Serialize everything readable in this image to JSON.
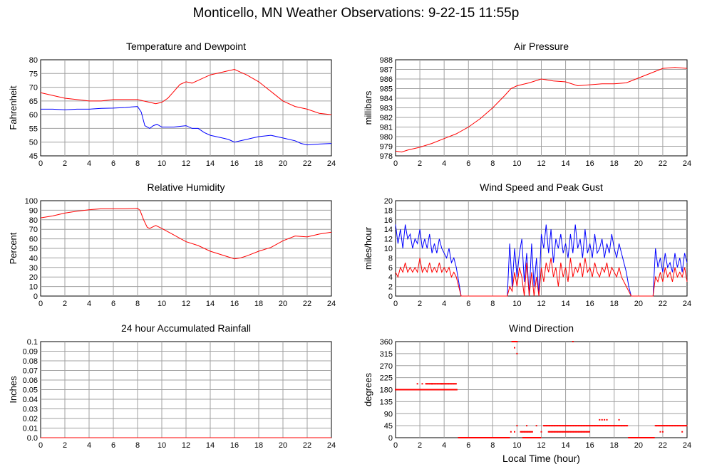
{
  "page": {
    "title": "Monticello, MN Weather Observations: 9-22-15 11:55p"
  },
  "chart_data": [
    {
      "id": "temp",
      "type": "line",
      "title": "Temperature and Dewpoint",
      "xlabel": "",
      "ylabel": "Fahrenheit",
      "xlim": [
        0,
        24
      ],
      "ylim": [
        45,
        80
      ],
      "xticks": [
        0,
        2,
        4,
        6,
        8,
        10,
        12,
        14,
        16,
        18,
        20,
        22,
        24
      ],
      "yticks": [
        45,
        50,
        55,
        60,
        65,
        70,
        75,
        80
      ],
      "grid": true,
      "series": [
        {
          "color": "#ff0000",
          "x": [
            0,
            1,
            2,
            3,
            4,
            5,
            6,
            7,
            8,
            8.5,
            9,
            9.5,
            10,
            10.5,
            11,
            11.5,
            12,
            12.5,
            13,
            14,
            15,
            15.5,
            16,
            16.5,
            17,
            18,
            19,
            20,
            21,
            22,
            23,
            24
          ],
          "y": [
            68,
            67,
            66,
            65.5,
            65,
            65,
            65.5,
            65.5,
            65.5,
            65,
            64.5,
            64,
            64.5,
            66,
            68.5,
            71,
            72,
            71.5,
            72.5,
            74.5,
            75.5,
            76,
            76.5,
            75.5,
            74.5,
            72,
            68.5,
            65,
            63,
            62,
            60.5,
            60
          ]
        },
        {
          "color": "#0000ff",
          "x": [
            0,
            1,
            2,
            3,
            4,
            5,
            6,
            7,
            7.5,
            8,
            8.3,
            8.6,
            9,
            9.3,
            9.6,
            10,
            11,
            12,
            12.5,
            13,
            13.5,
            14,
            14.5,
            15,
            15.5,
            16,
            16.5,
            17,
            17.5,
            18,
            19,
            20,
            21,
            21.5,
            22,
            23,
            24
          ],
          "y": [
            62,
            62,
            61.8,
            62,
            62,
            62.3,
            62.4,
            62.6,
            62.8,
            63,
            61,
            56,
            55,
            56,
            56.5,
            55.5,
            55.5,
            56,
            55,
            55,
            53.5,
            52.5,
            52,
            51.5,
            51,
            50,
            50.5,
            51,
            51.5,
            52,
            52.5,
            51.5,
            50.5,
            49.5,
            49,
            49.3,
            49.5
          ]
        }
      ]
    },
    {
      "id": "pressure",
      "type": "line",
      "title": "Air Pressure",
      "xlabel": "",
      "ylabel": "millibars",
      "xlim": [
        0,
        24
      ],
      "ylim": [
        978,
        988
      ],
      "xticks": [
        0,
        2,
        4,
        6,
        8,
        10,
        12,
        14,
        16,
        18,
        20,
        22,
        24
      ],
      "yticks": [
        978,
        979,
        980,
        981,
        982,
        983,
        984,
        985,
        986,
        987,
        988
      ],
      "grid": true,
      "series": [
        {
          "color": "#ff0000",
          "x": [
            0,
            0.5,
            1,
            2,
            3,
            4,
            5,
            6,
            7,
            8,
            9,
            9.5,
            10,
            11,
            12,
            12.5,
            13,
            14,
            15,
            16,
            17,
            18,
            19,
            20,
            21,
            22,
            23,
            24
          ],
          "y": [
            978.5,
            978.4,
            978.6,
            978.9,
            979.3,
            979.8,
            980.3,
            981,
            981.9,
            983,
            984.3,
            985,
            985.3,
            985.6,
            986,
            985.9,
            985.8,
            985.7,
            985.3,
            985.4,
            985.5,
            985.5,
            985.6,
            986.1,
            986.6,
            987.1,
            987.2,
            987.1
          ]
        }
      ]
    },
    {
      "id": "humidity",
      "type": "line",
      "title": "Relative Humidity",
      "xlabel": "",
      "ylabel": "Percent",
      "xlim": [
        0,
        24
      ],
      "ylim": [
        0,
        100
      ],
      "xticks": [
        0,
        2,
        4,
        6,
        8,
        10,
        12,
        14,
        16,
        18,
        20,
        22,
        24
      ],
      "yticks": [
        0,
        10,
        20,
        30,
        40,
        50,
        60,
        70,
        80,
        90,
        100
      ],
      "grid": true,
      "series": [
        {
          "color": "#ff0000",
          "x": [
            0,
            1,
            2,
            3,
            4,
            5,
            6,
            7,
            8,
            8.2,
            8.5,
            8.8,
            9,
            9.5,
            10,
            11,
            12,
            13,
            14,
            15,
            16,
            16.5,
            17,
            18,
            19,
            20,
            21,
            22,
            23,
            24
          ],
          "y": [
            82,
            84,
            87,
            89,
            90.5,
            91.5,
            91.5,
            91.5,
            92,
            90,
            80,
            72,
            71,
            74,
            71,
            64,
            57,
            53,
            47,
            43,
            39,
            40,
            42,
            47,
            51,
            58,
            63,
            62,
            65,
            67
          ]
        }
      ]
    },
    {
      "id": "wind",
      "type": "line",
      "title": "Wind Speed and Peak Gust",
      "xlabel": "",
      "ylabel": "miles/hour",
      "xlim": [
        0,
        24
      ],
      "ylim": [
        0,
        20
      ],
      "xticks": [
        0,
        2,
        4,
        6,
        8,
        10,
        12,
        14,
        16,
        18,
        20,
        22,
        24
      ],
      "yticks": [
        0,
        2,
        4,
        6,
        8,
        10,
        12,
        14,
        16,
        18,
        20
      ],
      "grid": true,
      "series": [
        {
          "color": "#0000ff",
          "x": [
            0,
            0.2,
            0.4,
            0.6,
            0.8,
            1,
            1.2,
            1.4,
            1.6,
            1.8,
            2,
            2.2,
            2.4,
            2.6,
            2.8,
            3,
            3.2,
            3.4,
            3.6,
            3.8,
            4,
            4.2,
            4.4,
            4.6,
            4.8,
            5,
            5.2,
            5.4,
            9.2,
            9.4,
            9.6,
            9.8,
            10,
            10.2,
            10.4,
            10.6,
            10.8,
            11,
            11.2,
            11.4,
            11.6,
            11.8,
            12,
            12.2,
            12.4,
            12.6,
            12.8,
            13,
            13.2,
            13.4,
            13.6,
            13.8,
            14,
            14.2,
            14.4,
            14.6,
            14.8,
            15,
            15.2,
            15.4,
            15.6,
            15.8,
            16,
            16.2,
            16.4,
            16.6,
            16.8,
            17,
            17.2,
            17.4,
            17.6,
            17.8,
            18,
            18.2,
            18.4,
            18.6,
            18.8,
            19,
            19.2,
            19.4,
            21.2,
            21.4,
            21.6,
            21.8,
            22,
            22.2,
            22.4,
            22.6,
            22.8,
            23,
            23.2,
            23.4,
            23.6,
            23.8,
            24
          ],
          "y": [
            15,
            11,
            14,
            10,
            15,
            12,
            13,
            10,
            12,
            11,
            14,
            10,
            12,
            10,
            13,
            9,
            11,
            9,
            12,
            10,
            9,
            8,
            10,
            7,
            8,
            6,
            3,
            0,
            0,
            11,
            2,
            10,
            4,
            9,
            12,
            3,
            9,
            0,
            11,
            2,
            8,
            0,
            13,
            10,
            15,
            9,
            14,
            7,
            12,
            10,
            13,
            9,
            11,
            8,
            13,
            9,
            15,
            10,
            12,
            8,
            14,
            9,
            11,
            8,
            13,
            9,
            10,
            12,
            8,
            11,
            9,
            13,
            10,
            8,
            11,
            9,
            7,
            5,
            2,
            0,
            0,
            10,
            6,
            8,
            5,
            9,
            6,
            7,
            5,
            9,
            6,
            8,
            5,
            9,
            7
          ],
          "extend_zero": [
            5.4,
            9.2,
            19.4,
            21.2
          ]
        },
        {
          "color": "#ff0000",
          "x": [
            0,
            0.2,
            0.4,
            0.6,
            0.8,
            1,
            1.2,
            1.4,
            1.6,
            1.8,
            2,
            2.2,
            2.4,
            2.6,
            2.8,
            3,
            3.2,
            3.4,
            3.6,
            3.8,
            4,
            4.2,
            4.4,
            4.6,
            4.8,
            5,
            5.2,
            5.4,
            9.2,
            9.4,
            9.6,
            9.8,
            10,
            10.2,
            10.4,
            10.6,
            10.8,
            11,
            11.2,
            11.4,
            11.6,
            11.8,
            12,
            12.2,
            12.4,
            12.6,
            12.8,
            13,
            13.2,
            13.4,
            13.6,
            13.8,
            14,
            14.2,
            14.4,
            14.6,
            14.8,
            15,
            15.2,
            15.4,
            15.6,
            15.8,
            16,
            16.2,
            16.4,
            16.6,
            16.8,
            17,
            17.2,
            17.4,
            17.6,
            17.8,
            18,
            18.2,
            18.4,
            18.6,
            18.8,
            19,
            19.2,
            19.4,
            21.2,
            21.4,
            21.6,
            21.8,
            22,
            22.2,
            22.4,
            22.6,
            22.8,
            23,
            23.2,
            23.4,
            23.6,
            23.8,
            24
          ],
          "y": [
            5,
            4,
            6,
            5,
            7,
            5,
            6,
            5,
            6,
            5,
            8,
            5,
            6,
            5,
            7,
            5,
            6,
            5,
            7,
            5,
            6,
            5,
            6,
            4,
            5,
            4,
            2,
            0,
            0,
            2,
            1,
            5,
            2,
            6,
            4,
            0,
            7,
            0,
            5,
            0,
            4,
            0,
            6,
            3,
            7,
            5,
            8,
            4,
            6,
            2,
            7,
            4,
            6,
            3,
            8,
            4,
            6,
            5,
            7,
            4,
            8,
            5,
            6,
            4,
            7,
            5,
            4,
            6,
            5,
            7,
            4,
            6,
            5,
            4,
            6,
            4,
            3,
            2,
            1,
            0,
            0,
            4,
            3,
            5,
            3,
            6,
            4,
            5,
            3,
            6,
            4,
            5,
            4,
            6,
            3
          ]
        }
      ]
    },
    {
      "id": "rain",
      "type": "line",
      "title": "24 hour Accumulated Rainfall",
      "xlabel": "",
      "ylabel": "Inches",
      "xlim": [
        0,
        24
      ],
      "ylim": [
        0,
        0.1
      ],
      "xticks": [
        0,
        2,
        4,
        6,
        8,
        10,
        12,
        14,
        16,
        18,
        20,
        22,
        24
      ],
      "yticks": [
        "0.0",
        "0.01",
        "0.02",
        "0.03",
        "0.04",
        "0.05",
        "0.06",
        "0.07",
        "0.08",
        "0.09",
        "0.1"
      ],
      "grid": true,
      "series": [
        {
          "color": "#ff0000",
          "x": [
            0,
            24
          ],
          "y": [
            0,
            0
          ]
        }
      ]
    },
    {
      "id": "direction",
      "type": "scatter",
      "title": "Wind Direction",
      "xlabel": "Local Time (hour)",
      "ylabel": "degrees",
      "xlim": [
        0,
        24
      ],
      "ylim": [
        0,
        360
      ],
      "xticks": [
        0,
        2,
        4,
        6,
        8,
        10,
        12,
        14,
        16,
        18,
        20,
        22,
        24
      ],
      "yticks": [
        0,
        45,
        90,
        135,
        180,
        225,
        270,
        315,
        360
      ],
      "grid": true,
      "series": [
        {
          "color": "#ff0000",
          "segments": [
            {
              "x0": 0,
              "x1": 5.1,
              "y": 180
            },
            {
              "x0": 2.5,
              "x1": 5.0,
              "y": 202
            },
            {
              "x0": 5.2,
              "x1": 9.4,
              "y": 0
            },
            {
              "x0": 9.6,
              "x1": 10.0,
              "y": 360
            },
            {
              "x0": 10.3,
              "x1": 11.3,
              "y": 22
            },
            {
              "x0": 10.5,
              "x1": 12.0,
              "y": 0
            },
            {
              "x0": 12.2,
              "x1": 19.1,
              "y": 45
            },
            {
              "x0": 12.6,
              "x1": 16.0,
              "y": 22
            },
            {
              "x0": 19.2,
              "x1": 21.3,
              "y": 0
            },
            {
              "x0": 21.4,
              "x1": 24.0,
              "y": 45
            }
          ],
          "points": [
            {
              "x": 1.8,
              "y": 202
            },
            {
              "x": 2.2,
              "y": 202
            },
            {
              "x": 3.0,
              "y": 202
            },
            {
              "x": 3.8,
              "y": 202
            },
            {
              "x": 9.8,
              "y": 337
            },
            {
              "x": 10.0,
              "y": 315
            },
            {
              "x": 9.5,
              "y": 22
            },
            {
              "x": 9.8,
              "y": 22
            },
            {
              "x": 14.6,
              "y": 360
            },
            {
              "x": 16.8,
              "y": 67
            },
            {
              "x": 17.0,
              "y": 67
            },
            {
              "x": 17.2,
              "y": 67
            },
            {
              "x": 17.4,
              "y": 67
            },
            {
              "x": 18.4,
              "y": 67
            },
            {
              "x": 21.8,
              "y": 22
            },
            {
              "x": 22.0,
              "y": 22
            },
            {
              "x": 23.6,
              "y": 22
            },
            {
              "x": 10.0,
              "y": 45
            },
            {
              "x": 10.8,
              "y": 45
            },
            {
              "x": 11.6,
              "y": 45
            },
            {
              "x": 12.0,
              "y": 22
            }
          ]
        }
      ]
    }
  ]
}
